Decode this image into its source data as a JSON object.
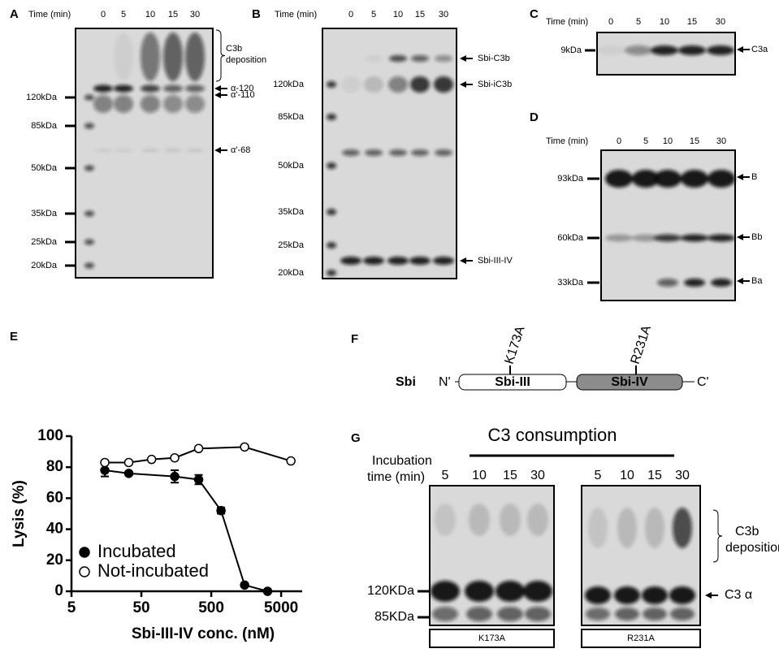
{
  "panel_a": {
    "label": "A",
    "time_label": "Time (min)",
    "times": [
      "0",
      "5",
      "10",
      "15",
      "30"
    ],
    "markers": [
      "120kDa",
      "85kDa",
      "50kDa",
      "35kDa",
      "25kDa",
      "20kDa"
    ],
    "bracket_label": [
      "C3b",
      "deposition"
    ],
    "bands": [
      "α-120",
      "α'-110",
      "α'-68"
    ]
  },
  "panel_b": {
    "label": "B",
    "time_label": "Time (min)",
    "times": [
      "0",
      "5",
      "10",
      "15",
      "30"
    ],
    "markers": [
      "120kDa",
      "85kDa",
      "50kDa",
      "35kDa",
      "25kDa",
      "20kDa"
    ],
    "bands": [
      "Sbi-C3b",
      "Sbi-iC3b",
      "Sbi-III-IV"
    ]
  },
  "panel_c": {
    "label": "C",
    "time_label": "Time (min)",
    "times": [
      "0",
      "5",
      "10",
      "15",
      "30"
    ],
    "markers": [
      "9kDa"
    ],
    "bands": [
      "C3a"
    ]
  },
  "panel_d": {
    "label": "D",
    "time_label": "Time (min)",
    "times": [
      "0",
      "5",
      "10",
      "15",
      "30"
    ],
    "markers": [
      "93kDa",
      "60kDa",
      "33kDa"
    ],
    "bands": [
      "B",
      "Bb",
      "Ba"
    ]
  },
  "panel_e": {
    "label": "E"
  },
  "chart_data": {
    "type": "scatter",
    "xlabel": "Sbi-III-IV conc. (nM)",
    "ylabel": "Lysis (%)",
    "log_x": true,
    "xlim": [
      5,
      10000
    ],
    "xticks": [
      5,
      50,
      500,
      5000
    ],
    "ylim": [
      0,
      100
    ],
    "yticks": [
      0,
      20,
      40,
      60,
      80,
      100
    ],
    "legend": "lower left",
    "fit_curve": true,
    "series": [
      {
        "name": "Incubated",
        "color": "#000000",
        "marker": "filled",
        "x": [
          15,
          33,
          150,
          330,
          690,
          1500,
          3200
        ],
        "values": [
          78,
          76,
          74,
          72,
          52,
          4,
          0
        ],
        "errors": [
          4,
          null,
          4,
          3,
          2,
          null,
          null
        ]
      },
      {
        "name": "Not-incubated",
        "color": "#000000",
        "marker": "open",
        "x": [
          15,
          33,
          70,
          150,
          330,
          1500,
          6900
        ],
        "values": [
          83,
          83,
          85,
          86,
          92,
          93,
          84
        ],
        "errors": [
          null,
          null,
          null,
          null,
          null,
          null,
          null
        ]
      }
    ]
  },
  "panel_f": {
    "label": "F",
    "protein": "Sbi",
    "n_term": "N'",
    "c_term": "C'",
    "domains": [
      "Sbi-III",
      "Sbi-IV"
    ],
    "mutations": [
      "K173A",
      "R231A"
    ]
  },
  "panel_g": {
    "label": "G",
    "title": "C3 consumption",
    "time_label": [
      "Incubation",
      "time (min)"
    ],
    "times_k173a": [
      "5",
      "10",
      "15",
      "30"
    ],
    "times_r231a": [
      "5",
      "10",
      "15",
      "30"
    ],
    "markers": [
      "120KDa",
      "85KDa"
    ],
    "bracket_label": [
      "C3b",
      "deposition"
    ],
    "bands": [
      "C3 α"
    ],
    "mutants": [
      "K173A",
      "R231A"
    ]
  }
}
